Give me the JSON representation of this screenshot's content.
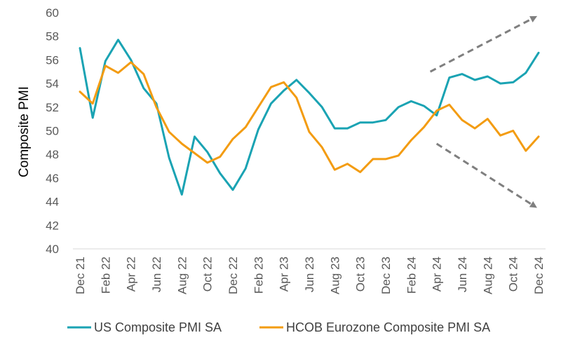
{
  "chart_data": {
    "type": "line",
    "title": "",
    "xlabel": "",
    "ylabel": "Composite PMI",
    "ylim": [
      40,
      60
    ],
    "yticks": [
      "40",
      "42",
      "44",
      "46",
      "48",
      "50",
      "52",
      "54",
      "56",
      "58",
      "60"
    ],
    "x": [
      "Dec 21",
      "Jan 22",
      "Feb 22",
      "Mar 22",
      "Apr 22",
      "May 22",
      "Jun 22",
      "Jul 22",
      "Aug 22",
      "Sep 22",
      "Oct 22",
      "Nov 22",
      "Dec 22",
      "Jan 23",
      "Feb 23",
      "Mar 23",
      "Apr 23",
      "May 23",
      "Jun 23",
      "Jul 23",
      "Aug 23",
      "Sep 23",
      "Oct 23",
      "Nov 23",
      "Dec 23",
      "Jan 24",
      "Feb 24",
      "Mar 24",
      "Apr 24",
      "May 24",
      "Jun 24",
      "Jul 24",
      "Aug 24",
      "Sep 24",
      "Oct 24",
      "Nov 24",
      "Dec 24"
    ],
    "xtick_labels": [
      "Dec 21",
      "Feb 22",
      "Apr 22",
      "Jun 22",
      "Aug 22",
      "Oct 22",
      "Dec 22",
      "Feb 23",
      "Apr 23",
      "Jun 23",
      "Aug 23",
      "Oct 23",
      "Dec 23",
      "Feb 24",
      "Apr 24",
      "Jun 24",
      "Aug 24",
      "Oct 24",
      "Dec 24"
    ],
    "series": [
      {
        "name": "US Composite PMI SA",
        "color": "#1aa3b3",
        "values": [
          57.0,
          51.1,
          55.9,
          57.7,
          56.0,
          53.6,
          52.3,
          47.7,
          44.6,
          49.5,
          48.2,
          46.4,
          45.0,
          46.8,
          50.1,
          52.3,
          53.4,
          54.3,
          53.2,
          52.0,
          50.2,
          50.2,
          50.7,
          50.7,
          50.9,
          52.0,
          52.5,
          52.1,
          51.3,
          54.5,
          54.8,
          54.3,
          54.6,
          54.0,
          54.1,
          54.9,
          56.6
        ]
      },
      {
        "name": "HCOB Eurozone Composite PMI SA",
        "color": "#f39c12",
        "values": [
          53.3,
          52.3,
          55.5,
          54.9,
          55.8,
          54.8,
          52.0,
          49.9,
          48.9,
          48.1,
          47.3,
          47.8,
          49.3,
          50.3,
          52.0,
          53.7,
          54.1,
          52.8,
          49.9,
          48.6,
          46.7,
          47.2,
          46.5,
          47.6,
          47.6,
          47.9,
          49.2,
          50.3,
          51.7,
          52.2,
          50.9,
          50.2,
          51.0,
          49.6,
          50.0,
          48.3,
          49.5
        ]
      }
    ],
    "annotations": [
      {
        "type": "arrow",
        "style": "dashed",
        "color": "#808080",
        "meaning": "upward divergence arrow"
      },
      {
        "type": "arrow",
        "style": "dashed",
        "color": "#808080",
        "meaning": "downward divergence arrow"
      }
    ],
    "grid": false,
    "legend_position": "bottom"
  }
}
